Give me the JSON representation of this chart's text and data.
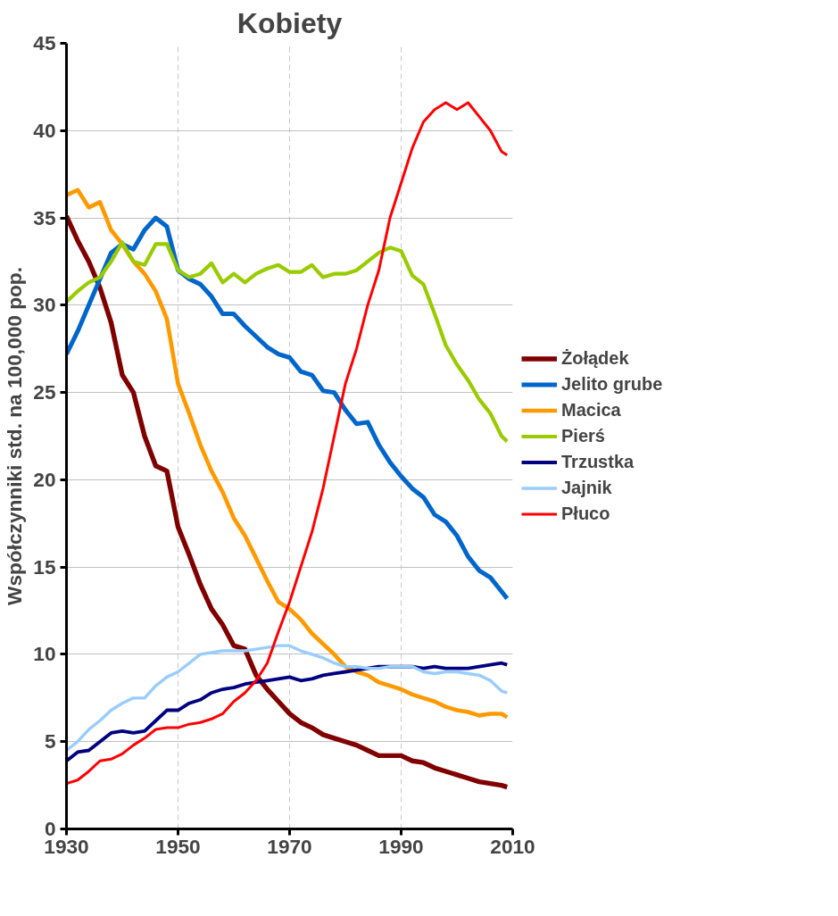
{
  "chart_data": {
    "type": "line",
    "title": "Kobiety",
    "ylabel": "Współczynniki std. na 100,000 pop.",
    "x": [
      1930,
      1932,
      1934,
      1936,
      1938,
      1940,
      1942,
      1944,
      1946,
      1948,
      1950,
      1952,
      1954,
      1956,
      1958,
      1960,
      1962,
      1964,
      1966,
      1968,
      1970,
      1972,
      1974,
      1976,
      1978,
      1980,
      1982,
      1984,
      1986,
      1988,
      1990,
      1992,
      1994,
      1996,
      1998,
      2000,
      2002,
      2004,
      2006,
      2008,
      2009
    ],
    "xlim": [
      1930,
      2010
    ],
    "xticks": [
      1930,
      1950,
      1970,
      1990,
      2010
    ],
    "ylim": [
      0,
      45
    ],
    "yticks": [
      0,
      5,
      10,
      15,
      20,
      25,
      30,
      35,
      40,
      45
    ],
    "grid": true,
    "legend": "right",
    "line_style": "solid",
    "marker": "none",
    "series": [
      {
        "name": "Żołądek",
        "color": "#800000",
        "values": [
          35.1,
          33.7,
          32.5,
          31,
          29,
          26,
          25,
          22.5,
          20.8,
          20.5,
          17.3,
          15.7,
          14,
          12.6,
          11.7,
          10.5,
          10.3,
          8.8,
          8,
          7.3,
          6.6,
          6.1,
          5.8,
          5.4,
          5.2,
          5,
          4.8,
          4.5,
          4.2,
          4.2,
          4.2,
          3.9,
          3.8,
          3.5,
          3.3,
          3.1,
          2.9,
          2.7,
          2.6,
          2.5,
          2.4
        ]
      },
      {
        "name": "Jelito grube",
        "color": "#0066cc",
        "values": [
          27.2,
          28.5,
          30,
          31.5,
          33,
          33.5,
          33.2,
          34.3,
          35,
          34.5,
          32,
          31.5,
          31.2,
          30.5,
          29.5,
          29.5,
          28.8,
          28.2,
          27.6,
          27.2,
          27,
          26.2,
          26,
          25.1,
          25,
          24,
          23.2,
          23.3,
          22,
          21,
          20.2,
          19.5,
          19,
          18,
          17.6,
          16.8,
          15.6,
          14.8,
          14.4,
          13.6,
          13.2
        ]
      },
      {
        "name": "Macica",
        "color": "#ff9900",
        "values": [
          36.3,
          36.6,
          35.6,
          35.9,
          34.3,
          33.5,
          32.5,
          31.8,
          30.8,
          29.2,
          25.5,
          23.8,
          22,
          20.5,
          19.3,
          17.8,
          16.8,
          15.5,
          14.2,
          13,
          12.6,
          12,
          11.2,
          10.6,
          10,
          9.3,
          9,
          8.8,
          8.4,
          8.2,
          8,
          7.7,
          7.5,
          7.3,
          7,
          6.8,
          6.7,
          6.5,
          6.6,
          6.6,
          6.4
        ]
      },
      {
        "name": "Pierś",
        "color": "#99cc00",
        "values": [
          30.2,
          30.8,
          31.3,
          31.6,
          32.5,
          33.6,
          32.5,
          32.3,
          33.5,
          33.5,
          32,
          31.6,
          31.8,
          32.4,
          31.3,
          31.8,
          31.3,
          31.8,
          32.1,
          32.3,
          31.9,
          31.9,
          32.3,
          31.6,
          31.8,
          31.8,
          32,
          32.5,
          33,
          33.3,
          33.1,
          31.7,
          31.2,
          29.5,
          27.7,
          26.6,
          25.7,
          24.6,
          23.8,
          22.5,
          22.2
        ]
      },
      {
        "name": "Trzustka",
        "color": "#000080",
        "values": [
          3.9,
          4.4,
          4.5,
          5,
          5.5,
          5.6,
          5.5,
          5.6,
          6.2,
          6.8,
          6.8,
          7.2,
          7.4,
          7.8,
          8,
          8.1,
          8.3,
          8.4,
          8.5,
          8.6,
          8.7,
          8.5,
          8.6,
          8.8,
          8.9,
          9,
          9.1,
          9.2,
          9.3,
          9.3,
          9.3,
          9.3,
          9.2,
          9.3,
          9.2,
          9.2,
          9.2,
          9.3,
          9.4,
          9.5,
          9.4
        ]
      },
      {
        "name": "Jajnik",
        "color": "#99ccff",
        "values": [
          4.5,
          5,
          5.7,
          6.2,
          6.8,
          7.2,
          7.5,
          7.5,
          8.2,
          8.7,
          9,
          9.5,
          10,
          10.1,
          10.2,
          10.2,
          10.2,
          10.3,
          10.4,
          10.5,
          10.5,
          10.2,
          10,
          9.8,
          9.5,
          9.3,
          9.3,
          9.2,
          9.2,
          9.3,
          9.3,
          9.3,
          9,
          8.9,
          9,
          9,
          8.9,
          8.8,
          8.5,
          7.9,
          7.8
        ]
      },
      {
        "name": "Płuco",
        "color": "#ff0000",
        "values": [
          2.6,
          2.8,
          3.3,
          3.9,
          4,
          4.3,
          4.8,
          5.2,
          5.7,
          5.8,
          5.8,
          6,
          6.1,
          6.3,
          6.6,
          7.3,
          7.8,
          8.5,
          9.5,
          11.3,
          13,
          15,
          17,
          19.5,
          22.5,
          25.5,
          27.5,
          30,
          32,
          35,
          37,
          39,
          40.5,
          41.2,
          41.6,
          41.2,
          41.6,
          40.8,
          40,
          38.8,
          38.6
        ]
      }
    ]
  }
}
